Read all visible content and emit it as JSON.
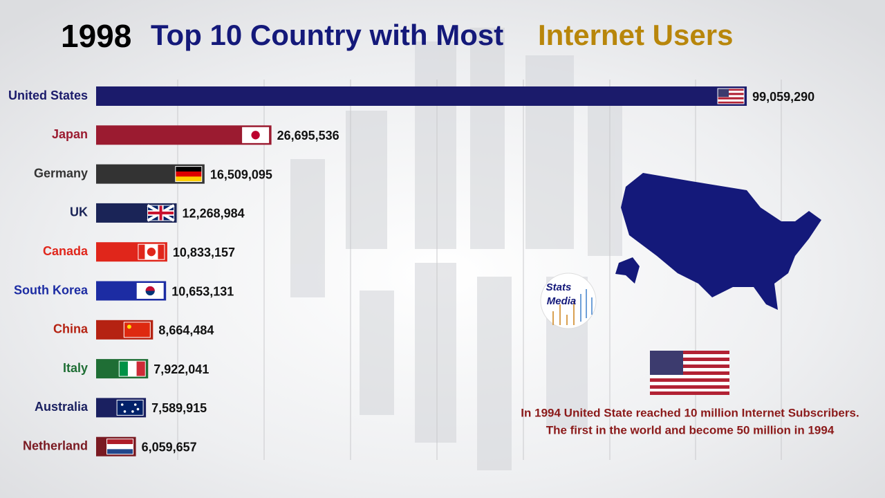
{
  "chart_data": {
    "type": "bar",
    "orientation": "horizontal",
    "title_year": "1998",
    "title": "Top 10 Country with Most",
    "title_highlight": "Internet Users",
    "categories": [
      "United States",
      "Japan",
      "Germany",
      "UK",
      "Canada",
      "South Korea",
      "China",
      "Italy",
      "Australia",
      "Netherland"
    ],
    "values": [
      99059290,
      26695536,
      16509095,
      12268984,
      10833157,
      10653131,
      8664484,
      7922041,
      7589915,
      6059657
    ],
    "value_labels": [
      "99,059,290",
      "26,695,536",
      "16,509,095",
      "12,268,984",
      "10,833,157",
      "10,653,131",
      "8,664,484",
      "7,922,041",
      "7,589,915",
      "6,059,657"
    ],
    "colors": [
      "#1b1b6b",
      "#9b1b30",
      "#333333",
      "#1a2457",
      "#e0261b",
      "#1c2ca3",
      "#b52212",
      "#1f6e35",
      "#1a2060",
      "#7a1a22"
    ],
    "xlim": [
      0,
      100000000
    ],
    "annotation": [
      "In 1994 United State reached 10 million Internet Subscribers.",
      "The first in the world and become 50 million in 1994"
    ],
    "logo": [
      "Stats",
      "Media"
    ]
  }
}
